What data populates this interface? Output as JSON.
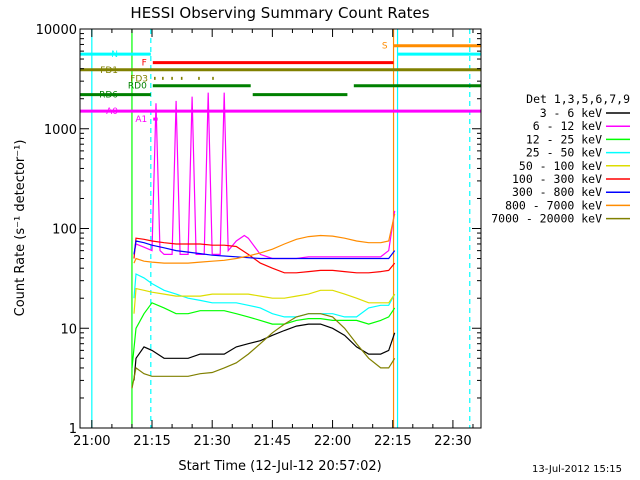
{
  "chart_data": {
    "type": "line",
    "title": "HESSI Observing Summary Count Rates",
    "xlabel": "Start Time (12-Jul-12 20:57:02)",
    "ylabel": "Count Rate (s⁻¹ detector⁻¹)",
    "x_tick_labels": [
      "21:00",
      "21:15",
      "21:30",
      "21:45",
      "22:00",
      "22:15",
      "22:30"
    ],
    "x_tick_minutes": [
      0,
      15,
      30,
      45,
      60,
      75,
      90
    ],
    "xlim_minutes": [
      -2.95,
      97.0
    ],
    "y_tick_labels": [
      "1",
      "10",
      "100",
      "1000",
      "10000"
    ],
    "y_tick_values": [
      1,
      10,
      100,
      1000,
      10000
    ],
    "ylim": [
      1,
      10000
    ],
    "yscale": "log",
    "grid": false,
    "legend_title": "Det 1,3,5,6,7,9",
    "legend_placement": "right",
    "footer_date": "13-Jul-2012 15:15",
    "series": [
      {
        "name": "3 - 6 keV",
        "color": "#000000",
        "x": [
          10.5,
          11,
          13,
          15,
          18,
          21,
          24,
          27,
          30,
          33,
          36,
          39,
          42,
          45,
          48,
          51,
          54,
          57,
          60,
          63,
          66,
          69,
          72,
          74,
          75.5
        ],
        "y": [
          3,
          5,
          6.5,
          6,
          5,
          5,
          5,
          5.5,
          5.5,
          5.5,
          6.5,
          7,
          7.5,
          8.5,
          9.5,
          10.5,
          11,
          11,
          10,
          8.5,
          6.5,
          5.5,
          5.5,
          6,
          9
        ]
      },
      {
        "name": "6 - 12 keV",
        "color": "#ff00ff",
        "x": [
          10.5,
          11,
          13,
          15,
          16,
          17,
          18,
          20,
          21,
          22,
          24,
          25,
          26,
          28,
          29,
          30,
          32,
          33,
          34,
          36,
          38,
          39,
          42,
          45,
          48,
          51,
          54,
          57,
          60,
          63,
          66,
          69,
          72,
          74,
          75.5
        ],
        "y": [
          55,
          70,
          65,
          60,
          1800,
          60,
          55,
          55,
          1900,
          55,
          55,
          2100,
          55,
          55,
          2300,
          55,
          55,
          2300,
          60,
          75,
          85,
          80,
          55,
          50,
          50,
          50,
          52,
          52,
          52,
          52,
          52,
          52,
          52,
          60,
          150
        ]
      },
      {
        "name": "12 - 25 keV",
        "color": "#00ff00",
        "x": [
          10,
          11,
          13,
          15,
          18,
          21,
          24,
          27,
          30,
          33,
          36,
          39,
          42,
          45,
          48,
          51,
          54,
          57,
          60,
          63,
          66,
          69,
          72,
          74,
          75.5
        ],
        "y": [
          4,
          10,
          14,
          18,
          16,
          14,
          14,
          15,
          15,
          15,
          14,
          13,
          12,
          11,
          11,
          12,
          12.5,
          12.5,
          12,
          12,
          12,
          11,
          12,
          13,
          16
        ]
      },
      {
        "name": "25 - 50 keV",
        "color": "#00ffff",
        "x": [
          10.5,
          11,
          13,
          15,
          18,
          21,
          24,
          27,
          30,
          33,
          36,
          39,
          42,
          45,
          48,
          51,
          54,
          57,
          60,
          63,
          66,
          69,
          72,
          74,
          75.5
        ],
        "y": [
          20,
          35,
          32,
          28,
          24,
          22,
          20,
          19,
          18,
          18,
          18,
          17,
          16,
          14,
          13,
          13,
          14,
          14,
          14,
          13,
          13,
          16,
          17,
          17,
          22
        ]
      },
      {
        "name": "50 - 100 keV",
        "color": "#dddd00",
        "x": [
          10.5,
          11,
          13,
          15,
          18,
          21,
          24,
          27,
          30,
          33,
          36,
          39,
          42,
          45,
          48,
          51,
          54,
          57,
          60,
          63,
          66,
          69,
          72,
          74,
          75.5
        ],
        "y": [
          14,
          25,
          24,
          23,
          22,
          21,
          21,
          21,
          22,
          22,
          22,
          22,
          21,
          20,
          20,
          21,
          22,
          24,
          24,
          22,
          20,
          18,
          18,
          18,
          22
        ]
      },
      {
        "name": "100 - 300 keV",
        "color": "#ff0000",
        "x": [
          10.5,
          11,
          13,
          15,
          18,
          21,
          24,
          27,
          30,
          33,
          36,
          39,
          42,
          45,
          48,
          51,
          54,
          57,
          60,
          63,
          66,
          69,
          72,
          74,
          75.5
        ],
        "y": [
          50,
          80,
          78,
          75,
          72,
          70,
          70,
          70,
          68,
          68,
          66,
          55,
          45,
          40,
          36,
          36,
          37,
          38,
          38,
          37,
          36,
          36,
          37,
          38,
          45
        ]
      },
      {
        "name": "300 - 800 keV",
        "color": "#0000ff",
        "x": [
          10.5,
          11,
          13,
          15,
          18,
          21,
          24,
          27,
          30,
          33,
          36,
          39,
          42,
          45,
          48,
          51,
          54,
          57,
          60,
          63,
          66,
          69,
          72,
          74,
          75.5
        ],
        "y": [
          55,
          75,
          72,
          68,
          64,
          60,
          58,
          56,
          54,
          53,
          52,
          51,
          50,
          50,
          50,
          50,
          50,
          50,
          50,
          50,
          50,
          50,
          50,
          50,
          60
        ]
      },
      {
        "name": "800 - 7000 keV",
        "color": "#ff8c00",
        "x": [
          10.5,
          11,
          13,
          15,
          18,
          21,
          24,
          27,
          30,
          33,
          36,
          39,
          42,
          45,
          48,
          51,
          54,
          57,
          60,
          63,
          66,
          69,
          72,
          74,
          75.5
        ],
        "y": [
          45,
          50,
          47,
          46,
          45,
          45,
          45,
          46,
          47,
          48,
          50,
          53,
          57,
          62,
          70,
          78,
          83,
          85,
          84,
          80,
          75,
          72,
          72,
          75,
          140
        ]
      },
      {
        "name": "7000 - 20000 keV",
        "color": "#808000",
        "x": [
          10,
          11,
          13,
          15,
          18,
          21,
          24,
          27,
          30,
          33,
          36,
          39,
          42,
          45,
          48,
          51,
          54,
          57,
          60,
          63,
          66,
          69,
          72,
          74,
          75.5
        ],
        "y": [
          2.5,
          4,
          3.5,
          3.3,
          3.3,
          3.3,
          3.3,
          3.5,
          3.6,
          4,
          4.5,
          5.5,
          7,
          9,
          11,
          13,
          14,
          14,
          13,
          10,
          7,
          5,
          4,
          4,
          5
        ]
      }
    ],
    "flag_bars": [
      {
        "label": "N",
        "color": "#00ffff",
        "y": 5600,
        "segments": [
          [
            -2.9,
            14.7
          ],
          [
            76.2,
            97.0
          ]
        ]
      },
      {
        "label": "S",
        "color": "#ff8c00",
        "y": 6800,
        "segments": [
          [
            75.2,
            97.0
          ]
        ]
      },
      {
        "label": "F",
        "color": "#ff0000",
        "y": 4600,
        "segments": [
          [
            15.2,
            75.2
          ]
        ]
      },
      {
        "label": "FD1",
        "color": "#808000",
        "y": 3900,
        "segments": [
          [
            -2.9,
            97.0
          ]
        ]
      },
      {
        "label": "FD3",
        "color": "#808000",
        "y": 3200,
        "segments": [
          [
            15.5,
            15.9
          ],
          [
            17.5,
            17.9
          ],
          [
            19.8,
            20.2
          ],
          [
            22.2,
            22.6
          ],
          [
            26.5,
            26.9
          ],
          [
            30.0,
            30.4
          ]
        ]
      },
      {
        "label": "RD0",
        "color": "#008000",
        "y": 2700,
        "segments": [
          [
            15.2,
            39.6
          ],
          [
            65.3,
            97.0
          ]
        ]
      },
      {
        "label": "RD6",
        "color": "#008000",
        "y": 2200,
        "segments": [
          [
            -2.9,
            14.7
          ],
          [
            40.1,
            63.7
          ]
        ]
      },
      {
        "label": "A0",
        "color": "#ff00ff",
        "y": 1500,
        "segments": [
          [
            -2.9,
            97.0
          ]
        ]
      },
      {
        "label": "A1",
        "color": "#ff00ff",
        "y": 1250,
        "segments": [
          [
            15.3,
            16.4
          ]
        ]
      }
    ],
    "vertical_markers": [
      {
        "x": 0.0,
        "color": "#00ffff",
        "style": "solid"
      },
      {
        "x": 10.0,
        "color": "#00ff00",
        "style": "solid"
      },
      {
        "x": 14.7,
        "color": "#00ffff",
        "style": "dashed"
      },
      {
        "x": 75.2,
        "color": "#ff8c00",
        "style": "solid"
      },
      {
        "x": 76.2,
        "color": "#00ffff",
        "style": "solid"
      },
      {
        "x": 94.2,
        "color": "#00ffff",
        "style": "dashed"
      }
    ]
  }
}
